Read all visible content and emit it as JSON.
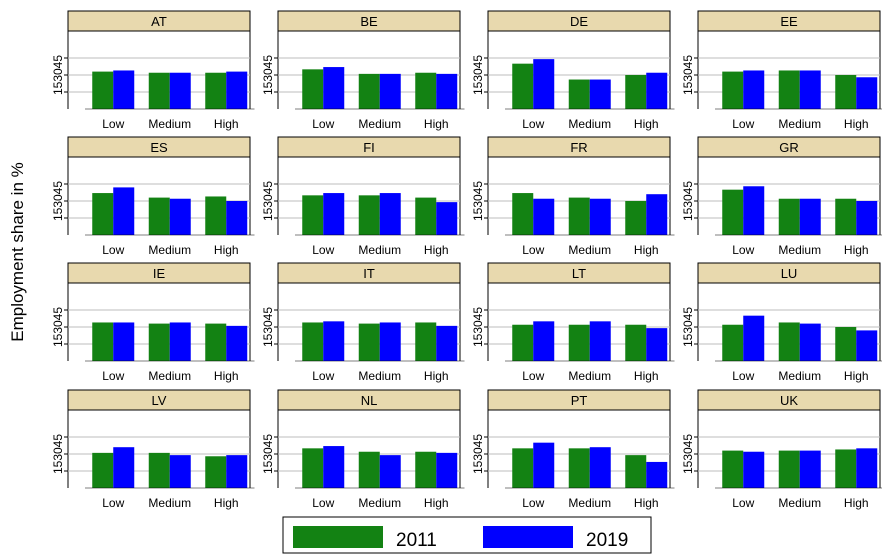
{
  "chart_data": {
    "type": "bar",
    "ylabel": "Employment share in %",
    "yticks": [
      "15",
      "30",
      "45"
    ],
    "ylim": [
      0,
      60
    ],
    "categories": [
      "Low",
      "Medium",
      "High"
    ],
    "series_names": [
      "2011",
      "2019"
    ],
    "colors": {
      "2011": "#138213",
      "2019": "#0000ff"
    },
    "strip_fill": "#e8d9ae",
    "legend_position": "bottom-center",
    "panels": [
      {
        "country": "AT",
        "values_2011": [
          33,
          32,
          32
        ],
        "values_2019": [
          34,
          32,
          33
        ]
      },
      {
        "country": "BE",
        "values_2011": [
          35,
          31,
          32
        ],
        "values_2019": [
          37,
          31,
          31
        ]
      },
      {
        "country": "DE",
        "values_2011": [
          40,
          26,
          30
        ],
        "values_2019": [
          44,
          26,
          32
        ]
      },
      {
        "country": "EE",
        "values_2011": [
          33,
          34,
          30
        ],
        "values_2019": [
          34,
          34,
          28
        ]
      },
      {
        "country": "ES",
        "values_2011": [
          37,
          33,
          34
        ],
        "values_2019": [
          42,
          32,
          30
        ]
      },
      {
        "country": "FI",
        "values_2011": [
          35,
          35,
          33
        ],
        "values_2019": [
          37,
          37,
          29
        ]
      },
      {
        "country": "FR",
        "values_2011": [
          37,
          33,
          30
        ],
        "values_2019": [
          32,
          32,
          36
        ]
      },
      {
        "country": "GR",
        "values_2011": [
          40,
          32,
          32
        ],
        "values_2019": [
          43,
          32,
          30
        ]
      },
      {
        "country": "IE",
        "values_2011": [
          34,
          33,
          33
        ],
        "values_2019": [
          34,
          34,
          31
        ]
      },
      {
        "country": "IT",
        "values_2011": [
          34,
          33,
          34
        ],
        "values_2019": [
          35,
          34,
          31
        ]
      },
      {
        "country": "LT",
        "values_2011": [
          32,
          32,
          32
        ],
        "values_2019": [
          35,
          35,
          29
        ]
      },
      {
        "country": "LU",
        "values_2011": [
          32,
          34,
          30
        ],
        "values_2019": [
          40,
          33,
          27
        ]
      },
      {
        "country": "LV",
        "values_2011": [
          31,
          31,
          28
        ],
        "values_2019": [
          36,
          29,
          29
        ]
      },
      {
        "country": "NL",
        "values_2011": [
          35,
          32,
          32
        ],
        "values_2019": [
          37,
          29,
          31
        ]
      },
      {
        "country": "PT",
        "values_2011": [
          35,
          35,
          29
        ],
        "values_2019": [
          40,
          36,
          23
        ]
      },
      {
        "country": "UK",
        "values_2011": [
          33,
          33,
          34
        ],
        "values_2019": [
          32,
          33,
          35
        ]
      }
    ]
  }
}
